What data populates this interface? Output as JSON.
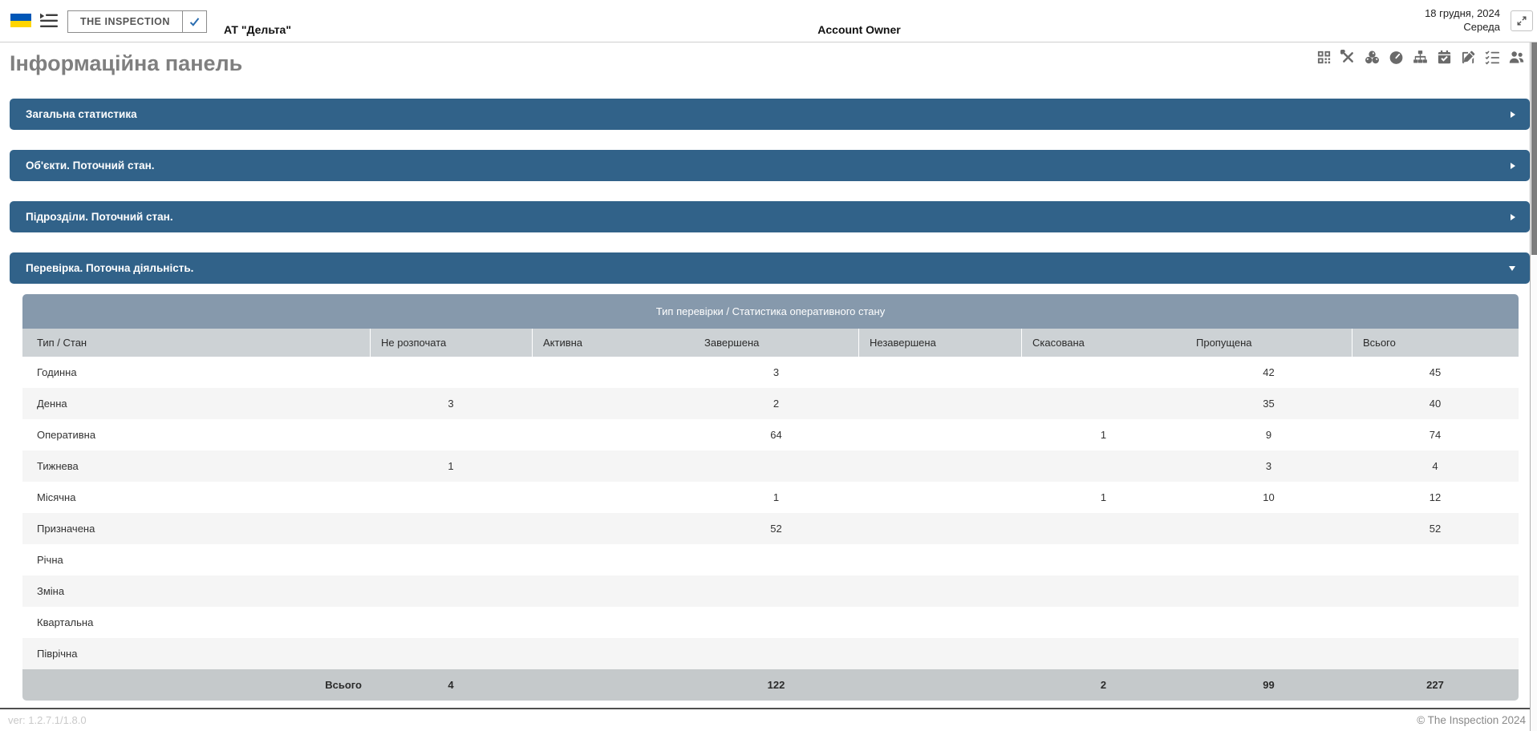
{
  "header": {
    "logo": "THE INSPECTION",
    "company": "АТ \"Дельта\"",
    "account_owner": "Account Owner",
    "date": "18 грудня, 2024",
    "weekday": "Середа"
  },
  "page_title": "Інформаційна панель",
  "toolbar_icons": [
    "qrcode-icon",
    "tools-icon",
    "spheres-icon",
    "gauge-icon",
    "sitemap-icon",
    "calendar-check-icon",
    "edit-icon",
    "checklist-icon",
    "users-icon"
  ],
  "panels": [
    {
      "label": "Загальна статистика",
      "expanded": false
    },
    {
      "label": "Об'єкти. Поточний стан.",
      "expanded": false
    },
    {
      "label": "Підрозділи. Поточний стан.",
      "expanded": false
    },
    {
      "label": "Перевірка. Поточна діяльність.",
      "expanded": true
    }
  ],
  "table": {
    "title": "Тип перевірки / Статистика оперативного стану",
    "columns": [
      "Тип / Стан",
      "Не розпочата",
      "Активна",
      "Завершена",
      "Незавершена",
      "Скасована",
      "Пропущена",
      "Всього"
    ],
    "rows": [
      {
        "label": "Годинна",
        "values": [
          "",
          "",
          "3",
          "",
          "",
          "42",
          "45"
        ]
      },
      {
        "label": "Денна",
        "values": [
          "3",
          "",
          "2",
          "",
          "",
          "35",
          "40"
        ]
      },
      {
        "label": "Оперативна",
        "values": [
          "",
          "",
          "64",
          "",
          "1",
          "9",
          "74"
        ]
      },
      {
        "label": "Тижнева",
        "values": [
          "1",
          "",
          "",
          "",
          "",
          "3",
          "4"
        ]
      },
      {
        "label": "Місячна",
        "values": [
          "",
          "",
          "1",
          "",
          "1",
          "10",
          "12"
        ]
      },
      {
        "label": "Призначена",
        "values": [
          "",
          "",
          "52",
          "",
          "",
          "",
          "52"
        ]
      },
      {
        "label": "Річна",
        "values": [
          "",
          "",
          "",
          "",
          "",
          "",
          ""
        ]
      },
      {
        "label": "Зміна",
        "values": [
          "",
          "",
          "",
          "",
          "",
          "",
          ""
        ]
      },
      {
        "label": "Квартальна",
        "values": [
          "",
          "",
          "",
          "",
          "",
          "",
          ""
        ]
      },
      {
        "label": "Піврічна",
        "values": [
          "",
          "",
          "",
          "",
          "",
          "",
          ""
        ]
      }
    ],
    "footer": {
      "label": "Всього",
      "values": [
        "4",
        "",
        "122",
        "",
        "2",
        "99",
        "227"
      ]
    }
  },
  "statusbar": {
    "version": "ver: 1.2.7.1/1.8.0",
    "copyright": "© The Inspection 2024"
  },
  "colors": {
    "accent": "#316289",
    "table_band": "#8699AC",
    "table_header": "#CDD2D5",
    "table_footer": "#C5C9CB",
    "row_alt": "#F5F5F5",
    "flag_blue": "#0057B7",
    "flag_yellow": "#FFD500",
    "check": "#2A6DB0"
  }
}
